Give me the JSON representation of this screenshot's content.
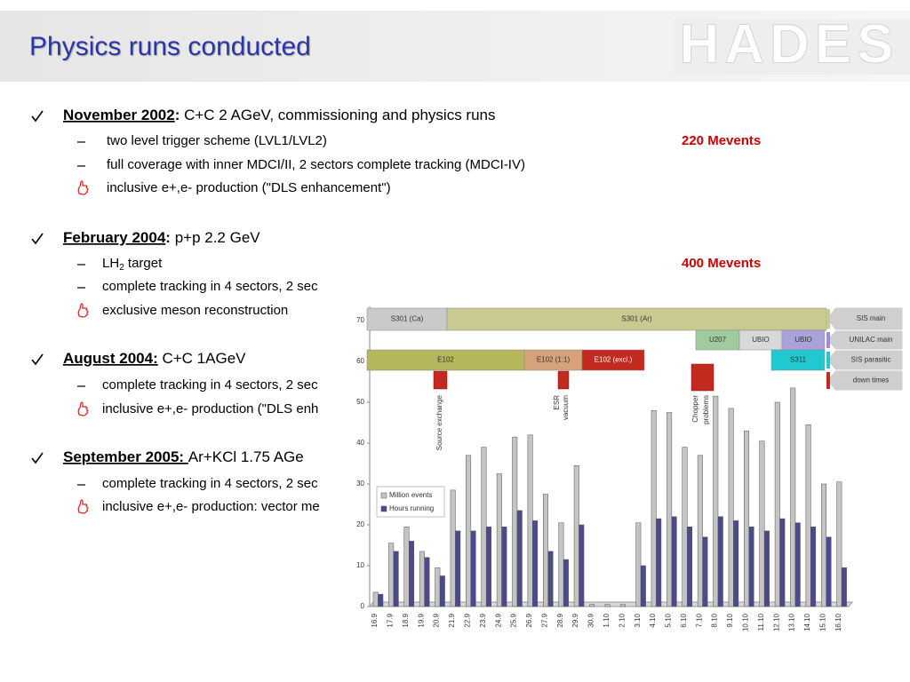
{
  "header": {
    "title": "Physics runs conducted",
    "logo": "HADES"
  },
  "sections": [
    {
      "date": "November 2002",
      "sep": ":",
      "text": " C+C 2 AGeV, commissioning and physics runs",
      "items": [
        {
          "kind": "dash",
          "text": "two level trigger scheme  (LVL1/LVL2)",
          "note": "220 Mevents"
        },
        {
          "kind": "dash",
          "text": "full coverage with inner MDCI/II, 2 sectors complete tracking (MDCI-IV)"
        },
        {
          "kind": "hand",
          "text": "inclusive e+,e- production (\"DLS enhancement\")"
        }
      ]
    },
    {
      "date": "February 2004",
      "sep": ":",
      "text": " p+p 2.2 GeV",
      "items": [
        {
          "kind": "dash",
          "text": "LH",
          "sub": "2",
          "rest": " target",
          "note": "400 Mevents"
        },
        {
          "kind": "dash",
          "text": "complete tracking in 4 sectors, 2 sec"
        },
        {
          "kind": "hand",
          "text": "exclusive meson reconstruction"
        }
      ]
    },
    {
      "date": "August 2004:",
      "text": " C+C 1AGeV",
      "items": [
        {
          "kind": "dash",
          "text": "complete tracking in 4 sectors, 2 sec"
        },
        {
          "kind": "hand",
          "text": "inclusive e+,e- production (\"DLS enh"
        }
      ]
    },
    {
      "date": "September 2005: ",
      "text": "Ar+KCl 1.75 AGe",
      "items": [
        {
          "kind": "dash",
          "text": "complete tracking in 4 sectors, 2 sec"
        },
        {
          "kind": "hand",
          "text": "inclusive e+,e- production: vector me"
        }
      ]
    }
  ],
  "chart_data": {
    "type": "bar",
    "categories": [
      "16.9",
      "17.9",
      "18.9",
      "19.9",
      "20.9",
      "21.9",
      "22.9",
      "23.9",
      "24.9",
      "25.9",
      "26.9",
      "27.9",
      "28.9",
      "29.9",
      "30.9",
      "1.10",
      "2.10",
      "3.10",
      "4.10",
      "5.10",
      "6.10",
      "7.10",
      "8.10",
      "9.10",
      "10.10",
      "11.10",
      "12.10",
      "13.10",
      "14.10",
      "15.10",
      "16.10"
    ],
    "series": [
      {
        "name": "Million events",
        "color": "#c4c4c4",
        "values": [
          3.5,
          15.5,
          19.5,
          13.5,
          9.5,
          28.5,
          37,
          39,
          32.5,
          41.5,
          42,
          27.5,
          20.5,
          34.5,
          0.5,
          0.5,
          0.5,
          20.5,
          48,
          47.5,
          39,
          37,
          51.5,
          48.5,
          43,
          40.5,
          50,
          53.5,
          44.5,
          30,
          30.5
        ]
      },
      {
        "name": "Hours running",
        "color": "#4a4a8c",
        "values": [
          3,
          13.5,
          16,
          12,
          7.5,
          18.5,
          18.5,
          19.5,
          19.5,
          23.5,
          21,
          13.5,
          11.5,
          20,
          0,
          0,
          0,
          10,
          21.5,
          22,
          19.5,
          17,
          22,
          21,
          19.5,
          18.5,
          21.5,
          20.5,
          19.5,
          17,
          9.5
        ]
      }
    ],
    "ylim": [
      0,
      70
    ],
    "yticks": [
      0,
      10,
      20,
      30,
      40,
      50,
      60,
      70
    ],
    "grid": false,
    "schedule": [
      {
        "label": "S301 (Ca)",
        "color": "#cacaca"
      },
      {
        "label": "S301 (Ar)",
        "color": "#c9c992"
      },
      {
        "label": "U207",
        "color": "#9fcc9f"
      },
      {
        "label": "UBIO",
        "color": "#d9d9d9"
      },
      {
        "label": "UBIO",
        "color": "#aaa2da"
      },
      {
        "label": "E102",
        "color": "#b6b65c"
      },
      {
        "label": "E102 (1:1)",
        "color": "#d6a27c"
      },
      {
        "label": "E102 (excl.)",
        "color": "#c22a20"
      },
      {
        "label": "S311",
        "color": "#22c8d0"
      }
    ],
    "schedule_legend": [
      "SIS main",
      "UNILAC main",
      "SIS parasitic",
      "down times"
    ],
    "annotations": [
      [
        "Source exchange"
      ],
      [
        "ESR",
        "vacuum"
      ],
      [
        "Chopper",
        "problems"
      ]
    ]
  }
}
